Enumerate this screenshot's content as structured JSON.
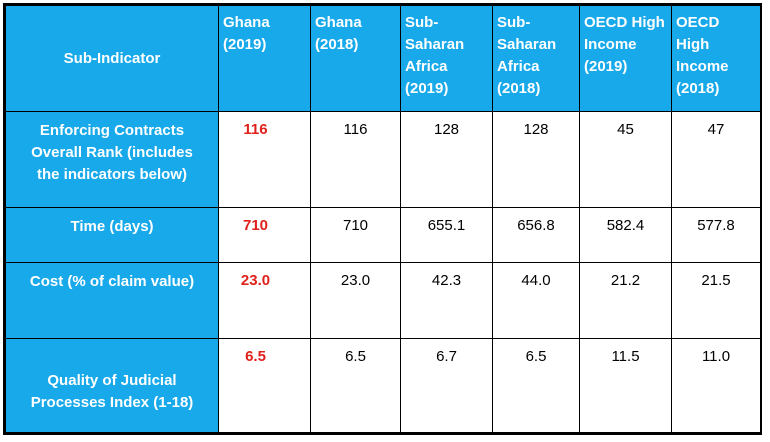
{
  "table": {
    "header": {
      "corner": "Sub-Indicator",
      "columns": [
        {
          "line1": "Ghana",
          "line2": "(2019)"
        },
        {
          "line1": "Ghana",
          "line2": "(2018)"
        },
        {
          "line1": "Sub-",
          "line2": "Saharan",
          "line3": "Africa",
          "line4": "(2019)"
        },
        {
          "line1": "Sub-",
          "line2": "Saharan",
          "line3": "Africa",
          "line4": "(2018)"
        },
        {
          "line1": "OECD High",
          "line2": "Income",
          "line3": "(2019)"
        },
        {
          "line1": "OECD High",
          "line2": "Income",
          "line3": "(2018)"
        }
      ]
    },
    "rows": [
      {
        "label_lines": [
          "Enforcing Contracts",
          "Overall Rank (includes",
          "the indicators below)"
        ],
        "values": [
          "116",
          "116",
          "128",
          "128",
          "45",
          "47"
        ]
      },
      {
        "label_lines": [
          "Time (days)"
        ],
        "values": [
          "710",
          "710",
          "655.1",
          "656.8",
          "582.4",
          "577.8"
        ]
      },
      {
        "label_lines": [
          "Cost (% of claim value)"
        ],
        "values": [
          "23.0",
          "23.0",
          "42.3",
          "44.0",
          "21.2",
          "21.5"
        ]
      },
      {
        "label_lines": [
          "Quality of Judicial",
          "Processes Index (1-18)"
        ],
        "values": [
          "6.5",
          "6.5",
          "6.7",
          "6.5",
          "11.5",
          "11.0"
        ]
      }
    ]
  },
  "colors": {
    "header_bg": "#18a9ea",
    "header_text": "#ffffff",
    "ghana_2019_value": "#e0211b"
  }
}
